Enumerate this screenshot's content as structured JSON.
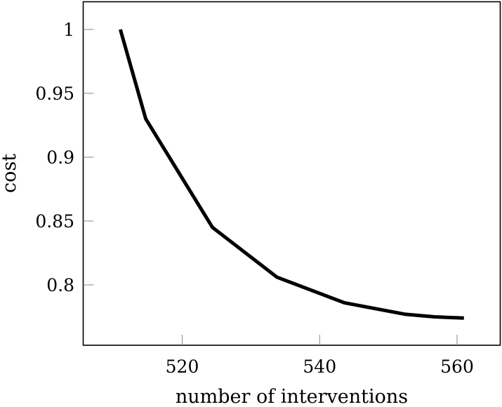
{
  "chart_data": {
    "type": "line",
    "title": "",
    "xlabel": "number of interventions",
    "ylabel": "cost",
    "x": [
      511.0,
      514.7,
      524.4,
      533.8,
      543.6,
      552.5,
      556.7,
      561.0
    ],
    "series": [
      {
        "name": "cost",
        "color": "#000000",
        "values": [
          1.0,
          0.93,
          0.845,
          0.806,
          0.786,
          0.777,
          0.775,
          0.774
        ]
      }
    ],
    "xticks": [
      520,
      540,
      560
    ],
    "xtick_labels": [
      "520",
      "540",
      "560"
    ],
    "yticks": [
      0.8,
      0.85,
      0.9,
      0.95,
      1.0
    ],
    "ytick_labels": [
      "0.8",
      "0.85",
      "0.9",
      "0.95",
      "1"
    ],
    "xlim": [
      506.1,
      566.7
    ],
    "ylim": [
      0.754,
      1.022
    ],
    "grid": false,
    "legend": null
  }
}
